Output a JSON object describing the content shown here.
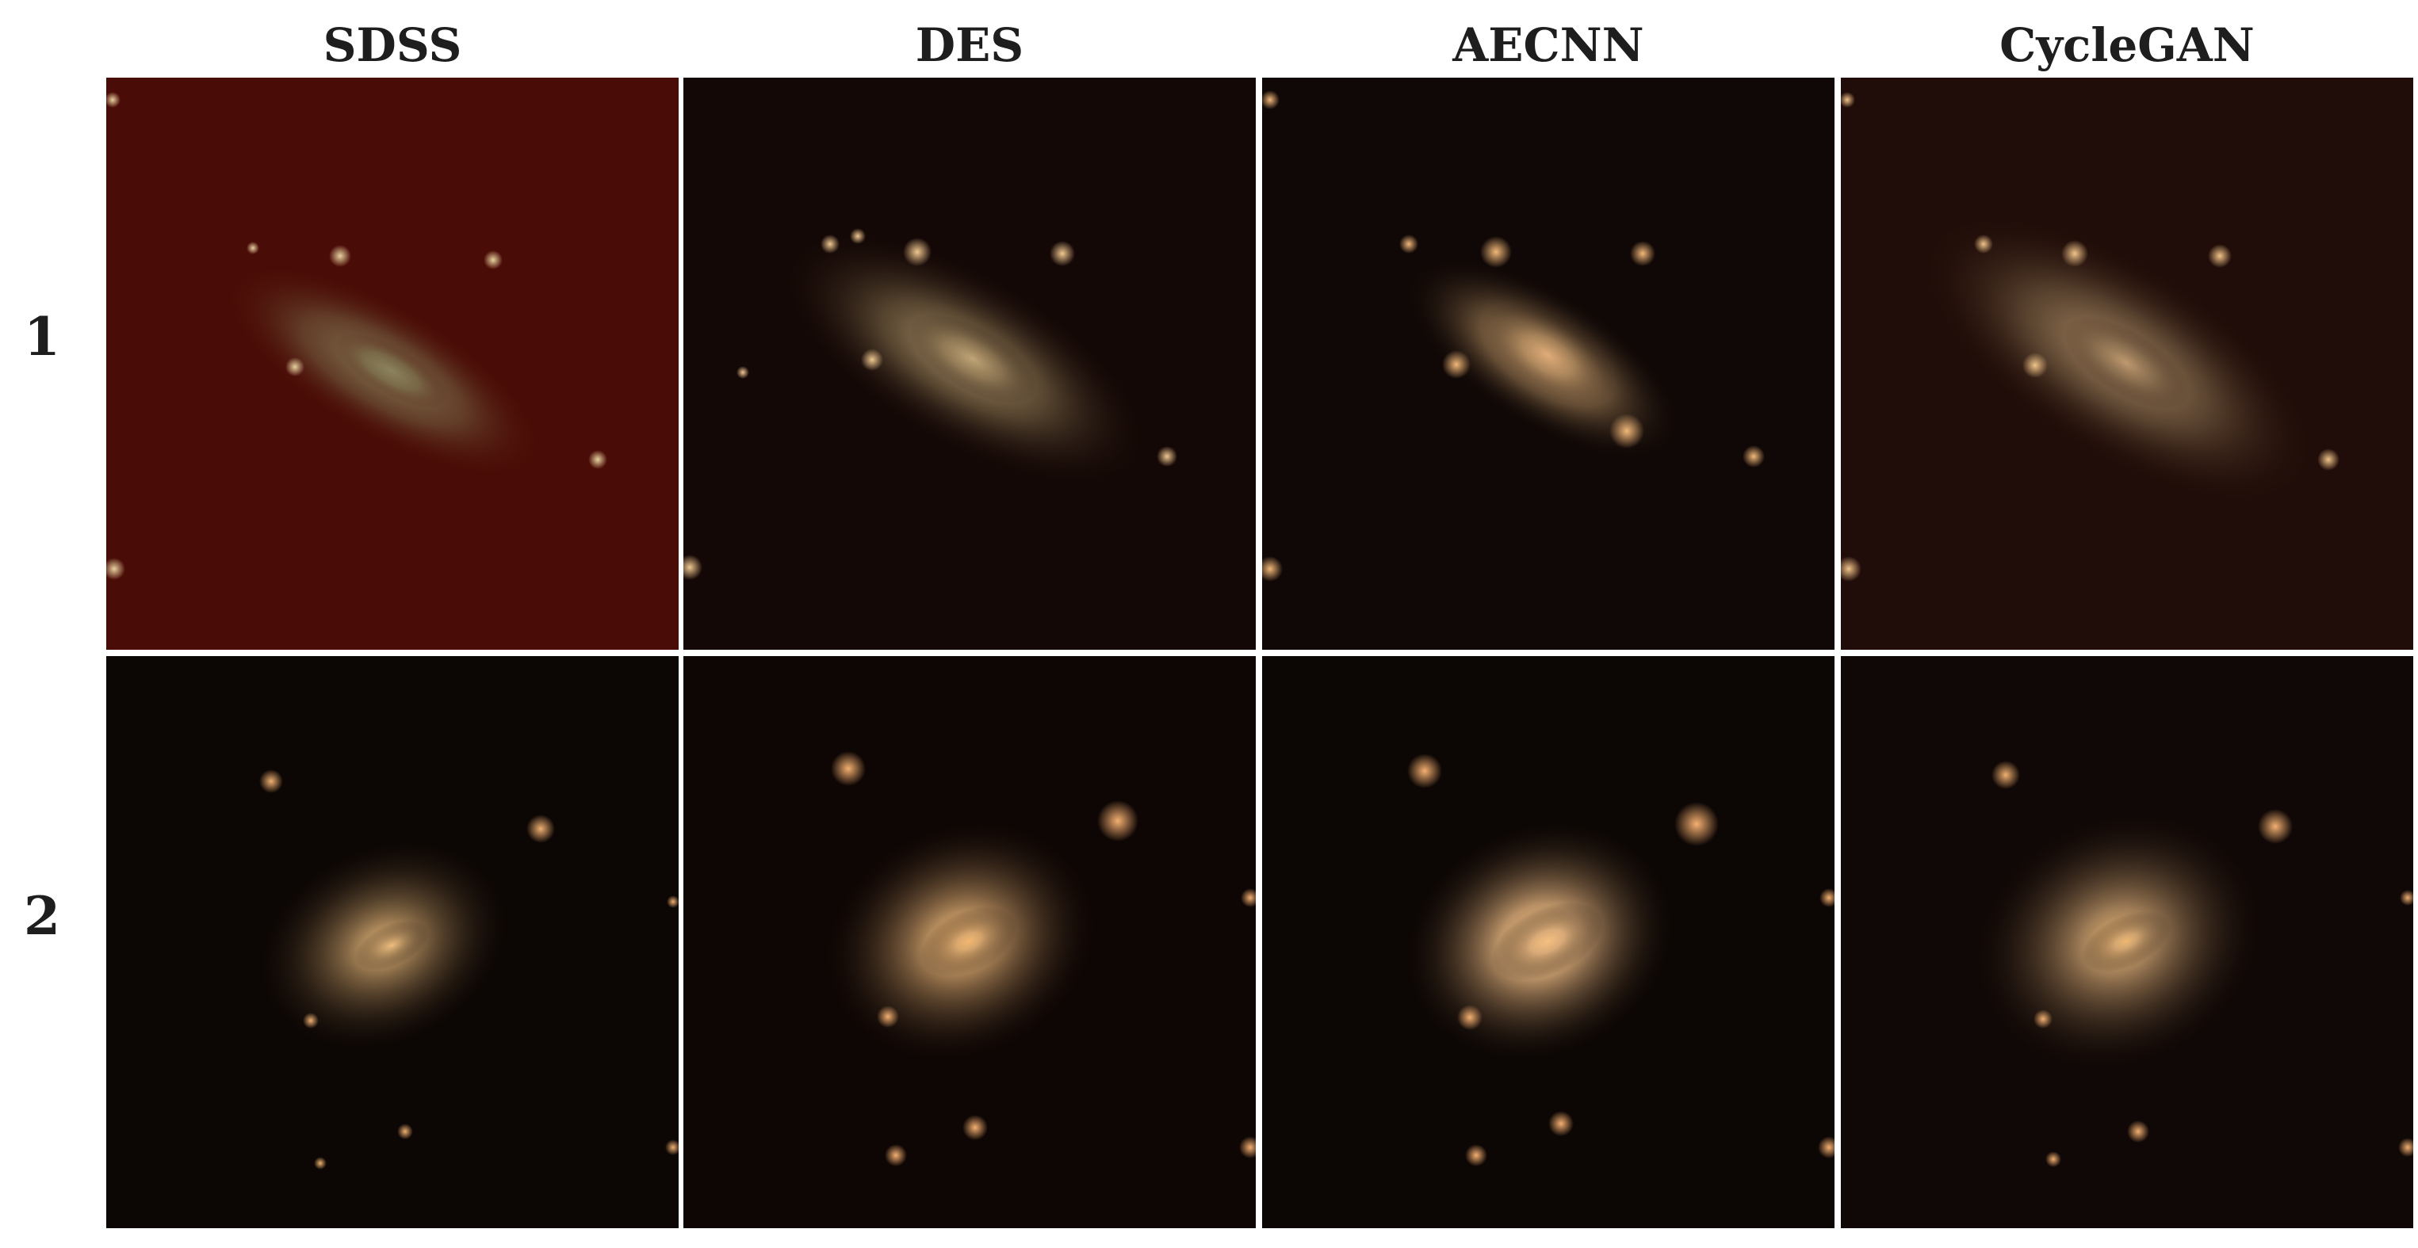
{
  "columns": [
    "SDSS",
    "DES",
    "AECNN",
    "CycleGAN"
  ],
  "rows": [
    "1",
    "2"
  ],
  "panels": [
    {
      "row": "1",
      "column": "SDSS",
      "background": "#4a0c06",
      "galaxy_color": "#8e8560"
    },
    {
      "row": "1",
      "column": "DES",
      "background": "#140806",
      "galaxy_color": "#b29a72"
    },
    {
      "row": "1",
      "column": "AECNN",
      "background": "#100806",
      "galaxy_color": "#c9a074"
    },
    {
      "row": "1",
      "column": "CycleGAN",
      "background": "#200c08",
      "galaxy_color": "#ad9470"
    },
    {
      "row": "2",
      "column": "SDSS",
      "background": "#0c0604",
      "galaxy_color": "#c9a06a"
    },
    {
      "row": "2",
      "column": "DES",
      "background": "#0e0604",
      "galaxy_color": "#d6a66e"
    },
    {
      "row": "2",
      "column": "AECNN",
      "background": "#0c0604",
      "galaxy_color": "#d8aa78"
    },
    {
      "row": "2",
      "column": "CycleGAN",
      "background": "#100806",
      "galaxy_color": "#cfa472"
    }
  ]
}
